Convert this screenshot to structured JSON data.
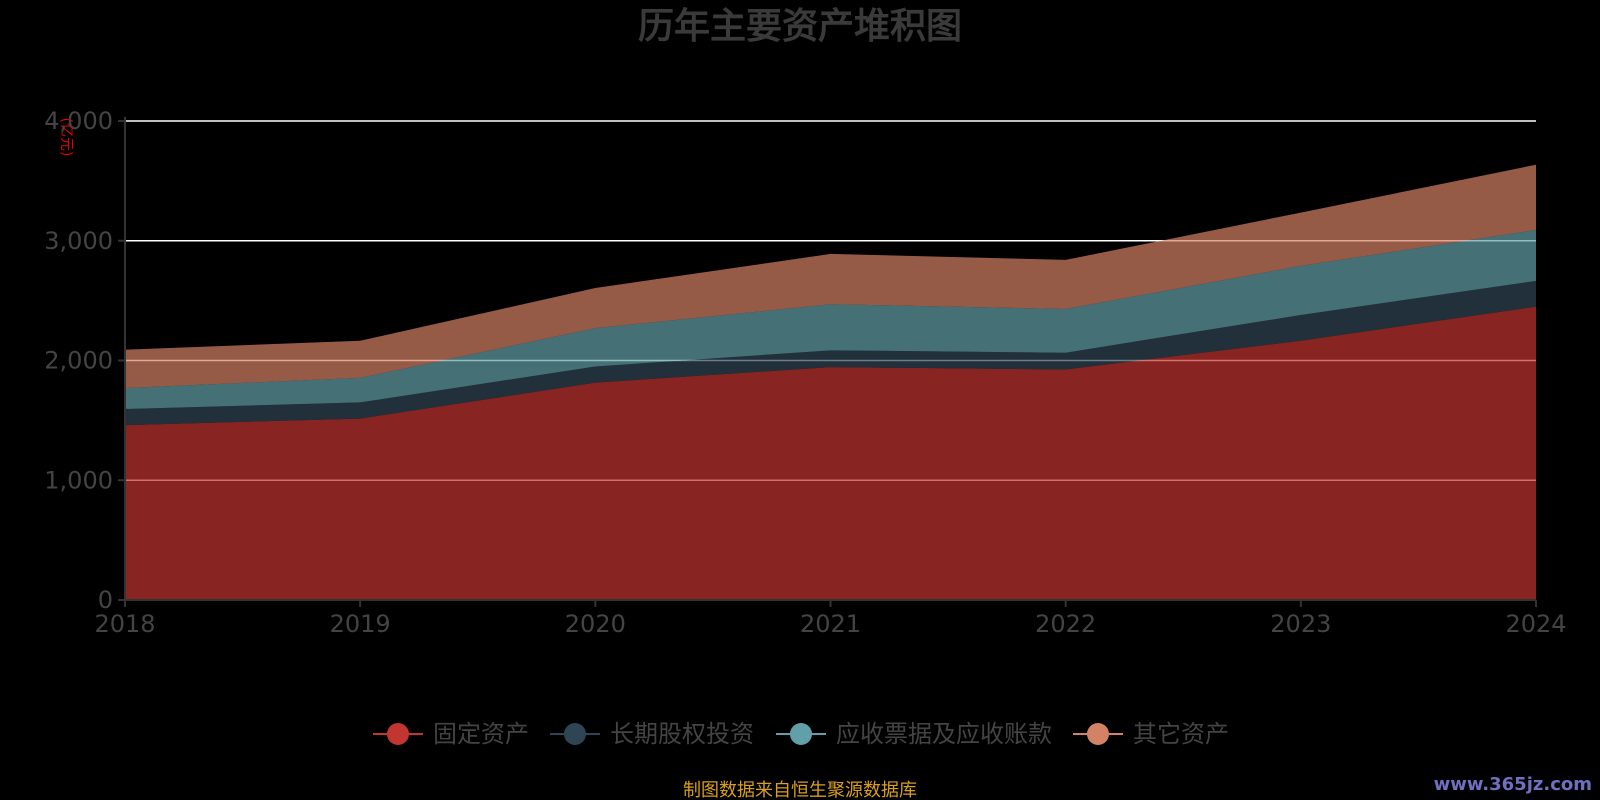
{
  "chart_data": {
    "type": "area",
    "stacked": true,
    "title": "历年主要资产堆积图",
    "unit_label": "(亿元)",
    "x": [
      "2018",
      "2019",
      "2020",
      "2021",
      "2022",
      "2023",
      "2024"
    ],
    "ylim": [
      0,
      4000
    ],
    "yticks": [
      0,
      1000,
      2000,
      3000,
      4000
    ],
    "ytick_labels": [
      "0",
      "1,000",
      "2,000",
      "3,000",
      "4,000"
    ],
    "grid": true,
    "legend_position": "bottom",
    "series": [
      {
        "name": "固定资产",
        "color": "#c23531",
        "values": [
          1460,
          1515,
          1815,
          1945,
          1925,
          2165,
          2450
        ]
      },
      {
        "name": "长期股权投资",
        "color": "#2f4554",
        "values": [
          135,
          135,
          135,
          140,
          140,
          215,
          215
        ]
      },
      {
        "name": "应收票据及应收账款",
        "color": "#61a0a8",
        "values": [
          175,
          205,
          320,
          385,
          365,
          410,
          425
        ]
      },
      {
        "name": "其它资产",
        "color": "#d48265",
        "values": [
          320,
          310,
          335,
          420,
          410,
          445,
          545
        ]
      }
    ]
  },
  "footer": {
    "source": "制图数据来自恒生聚源数据库",
    "watermark": "www.365jz.com"
  }
}
